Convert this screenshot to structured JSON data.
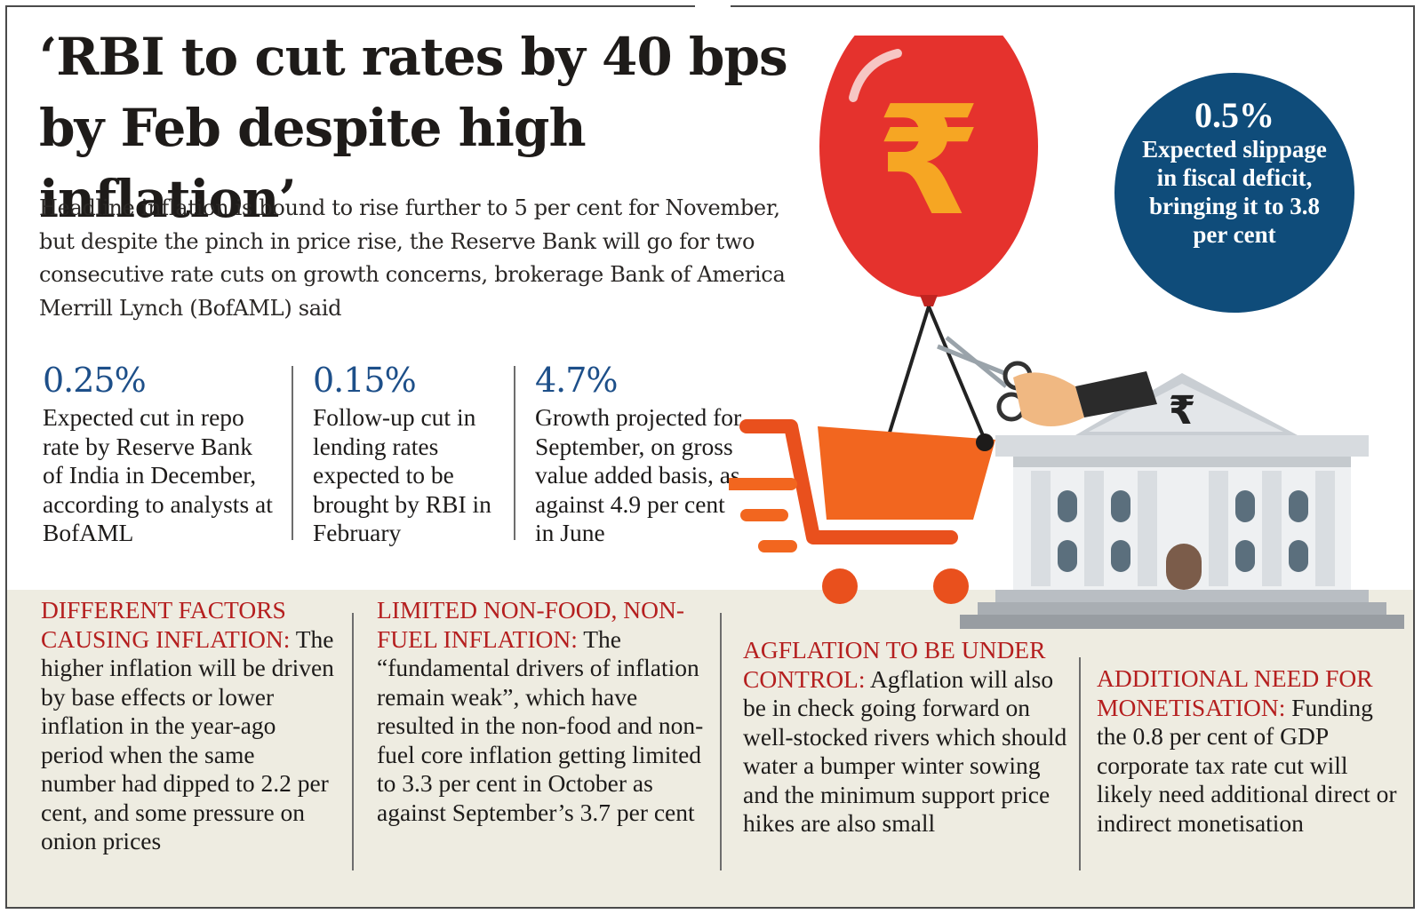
{
  "headline": "‘RBI to cut rates by 40 bps by Feb despite high inflation’",
  "intro": "Headline inflation is bound to rise further to 5 per cent for November, but despite the pinch in price rise, the Reserve Bank will go for two consecutive rate cuts on growth concerns, brokerage Bank of America Merrill Lynch (BofAML) said",
  "stats": [
    {
      "value": "0.25%",
      "desc": "Expected cut in repo rate by Reserve Bank of India in December, according to analysts at BofAML"
    },
    {
      "value": "0.15%",
      "desc": "Follow-up cut in lending rates expected to be brought by RBI in February"
    },
    {
      "value": "4.7%",
      "desc": "Growth projected for September, on gross value added basis, as against 4.9 per cent in June"
    }
  ],
  "circle": {
    "value": "0.5%",
    "text": "Expected slippage in fiscal deficit, bringing it to 3.8 per cent"
  },
  "factors": [
    {
      "label": "DIFFERENT FACTORS CAUSING INFLATION:",
      "text": "The higher inflation will be driven by base effects or lower inflation in the year-ago period when the same number had dipped to 2.2 per cent, and some pressure on onion prices"
    },
    {
      "label": "LIMITED NON-FOOD, NON-FUEL INFLATION:",
      "text": "The “fundamental drivers of inflation remain weak”, which have resulted in the non-food and non-fuel core inflation getting limited to 3.3 per cent in October as against September’s 3.7 per cent"
    },
    {
      "label": "AGFLATION TO BE UNDER CONTROL:",
      "text": "Agflation will also be in check going forward on well-stocked rivers which should water a bumper winter sowing and the minimum support price hikes are also small"
    },
    {
      "label": "ADDITIONAL NEED FOR MONETISATION:",
      "text": "Funding the 0.8 per cent of GDP corporate tax rate cut will likely need additional direct or indirect monetisation"
    }
  ],
  "icons": {
    "balloon": "rupee-balloon-icon",
    "cart": "shopping-cart-icon",
    "bank": "bank-building-icon",
    "scissors": "scissors-icon"
  },
  "colors": {
    "stat_blue": "#1d4f89",
    "label_red": "#b51f1f",
    "circle_blue": "#0f4c7a",
    "balloon_red": "#e5322d",
    "rupee_orange": "#f6a623",
    "band": "#eeece1"
  },
  "art_text": {
    "balloon_symbol": "₹",
    "bank_symbol": "₹"
  }
}
